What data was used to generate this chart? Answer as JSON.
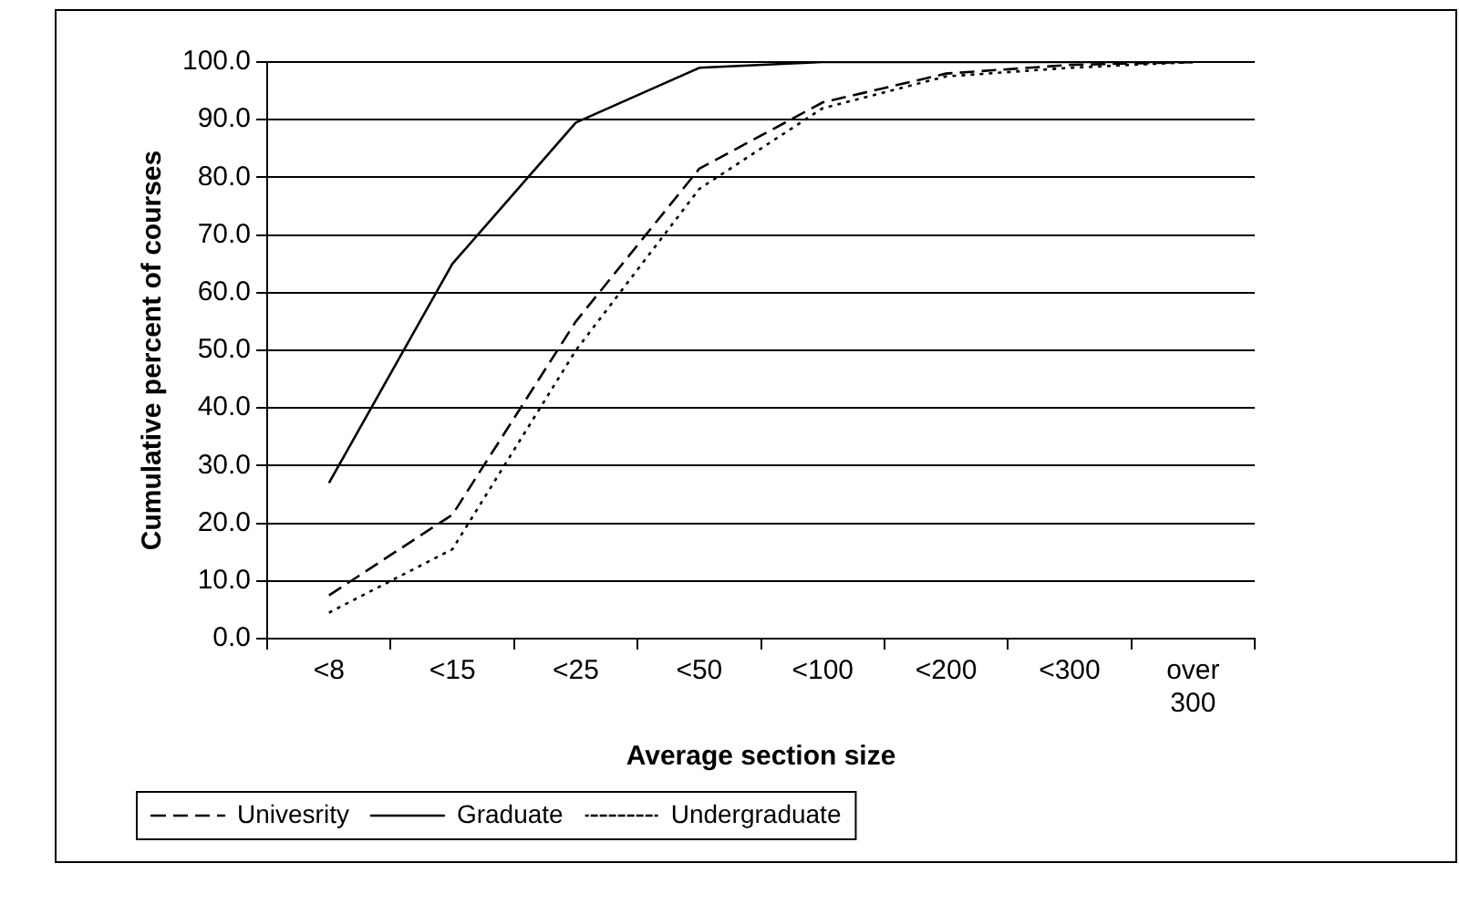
{
  "chart_data": {
    "type": "line",
    "xlabel": "Average section size",
    "ylabel": "Cumulative percent of courses",
    "categories": [
      "<8",
      "<15",
      "<25",
      "<50",
      "<100",
      "<200",
      "<300",
      "over 300"
    ],
    "series": [
      {
        "name": "Univesrity",
        "color": "#000000",
        "line_style": "dashed",
        "values": [
          7.5,
          21.5,
          55,
          81.5,
          93,
          98,
          99.5,
          100
        ]
      },
      {
        "name": "Graduate",
        "color": "#000000",
        "line_style": "solid",
        "values": [
          27,
          65,
          89.5,
          99,
          100,
          100,
          100,
          100
        ]
      },
      {
        "name": "Undergraduate",
        "color": "#000000",
        "line_style": "dotted",
        "values": [
          4.5,
          15.5,
          50,
          78,
          92,
          97.5,
          99,
          100
        ]
      }
    ],
    "ylim": [
      0,
      100
    ],
    "yticks": [
      {
        "value": 0,
        "label": "0.0"
      },
      {
        "value": 10,
        "label": "10.0"
      },
      {
        "value": 20,
        "label": "20.0"
      },
      {
        "value": 30,
        "label": "30.0"
      },
      {
        "value": 40,
        "label": "40.0"
      },
      {
        "value": 50,
        "label": "50.0"
      },
      {
        "value": 60,
        "label": "60.0"
      },
      {
        "value": 70,
        "label": "70.0"
      },
      {
        "value": 80,
        "label": "80.0"
      },
      {
        "value": 90,
        "label": "90.0"
      },
      {
        "value": 100,
        "label": "100.0"
      }
    ],
    "grid": "y",
    "legend": "bottom left",
    "marker": "none"
  }
}
